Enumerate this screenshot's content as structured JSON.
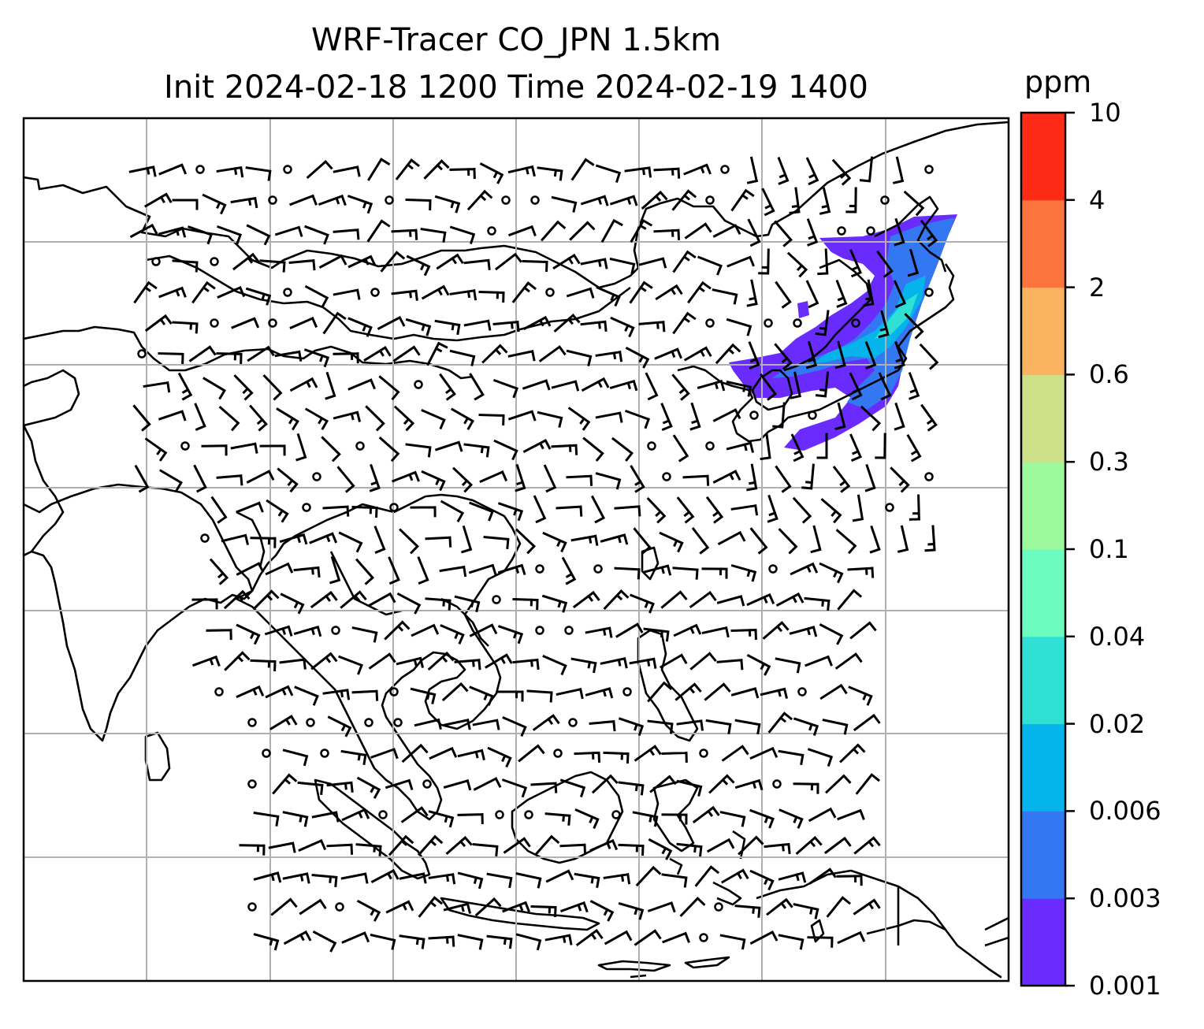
{
  "title": {
    "line1": "WRF-Tracer CO_JPN 1.5km",
    "line2": "Init 2024-02-18 1200 Time 2024-02-19 1400"
  },
  "colorbar": {
    "units": "ppm",
    "levels": [
      "0.001",
      "0.003",
      "0.006",
      "0.02",
      "0.04",
      "0.1",
      "0.3",
      "0.6",
      "2",
      "4",
      "10"
    ],
    "colors": [
      "#6a2bff",
      "#3377f3",
      "#04b4ea",
      "#31e0d4",
      "#6cfcbf",
      "#9dfa9c",
      "#cfe08a",
      "#fbb261",
      "#fb743d",
      "#fd2a16"
    ]
  },
  "map": {
    "grid": "on",
    "coastline_color": "#000000",
    "gridline_color": "#b0b0b0",
    "tracer_plume_region": "Japan / northeast"
  }
}
